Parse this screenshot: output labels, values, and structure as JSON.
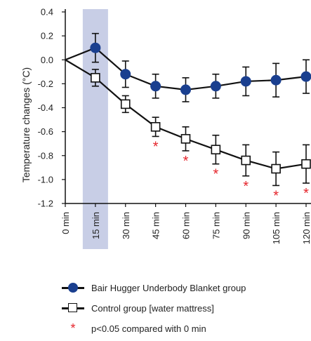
{
  "chart_data": {
    "type": "line",
    "title": "",
    "xlabel": "",
    "ylabel": "Temperature changes (°C)",
    "categories": [
      "0 min",
      "15 min",
      "30 min",
      "45 min",
      "60 min",
      "75 min",
      "90 min",
      "105 min",
      "120 min"
    ],
    "ylim": [
      -1.2,
      0.4
    ],
    "yticks": [
      "0.4",
      "0.2",
      "0.0",
      "-0.2",
      "-0.4",
      "-0.6",
      "-0.8",
      "-1.0",
      "-1.2"
    ],
    "highlight_category": "15 min",
    "grid": false,
    "legend_position": "bottom",
    "series": [
      {
        "name": "Bair Hugger Underbody Blanket group",
        "marker": "filled-circle",
        "color": "#1a3f8f",
        "values": [
          0.0,
          0.1,
          -0.12,
          -0.22,
          -0.25,
          -0.22,
          -0.18,
          -0.17,
          -0.14
        ],
        "error": [
          0.0,
          0.12,
          0.11,
          0.1,
          0.1,
          0.1,
          0.12,
          0.14,
          0.14
        ]
      },
      {
        "name": "Control group [water mattress]",
        "marker": "open-square",
        "color": "#111111",
        "values": [
          0.0,
          -0.15,
          -0.37,
          -0.56,
          -0.66,
          -0.75,
          -0.84,
          -0.91,
          -0.87
        ],
        "error": [
          0.0,
          0.07,
          0.07,
          0.08,
          0.1,
          0.12,
          0.13,
          0.14,
          0.16
        ]
      }
    ],
    "significance": {
      "label": "p<0.05 compared with 0 min",
      "symbol": "*",
      "color": "#e5242b",
      "categories": [
        "45 min",
        "60 min",
        "75 min",
        "90 min",
        "105 min",
        "120 min"
      ]
    }
  }
}
